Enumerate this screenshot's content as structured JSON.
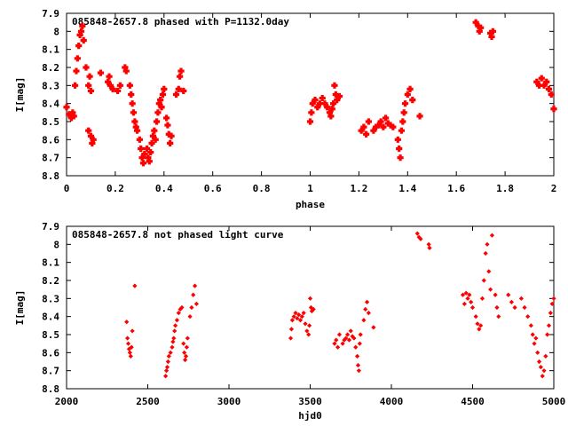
{
  "chart_data": [
    {
      "type": "scatter",
      "title": "085848-2657.8 phased with P=1132.0day",
      "xlabel": "phase",
      "ylabel": "I[mag]",
      "xlim": [
        0,
        2
      ],
      "ylim": [
        7.9,
        8.8
      ],
      "y_inverted": true,
      "x_ticks": [
        "0",
        "0.2",
        "0.4",
        "0.6",
        "0.8",
        "1",
        "1.2",
        "1.4",
        "1.6",
        "1.8",
        "2"
      ],
      "y_ticks": [
        "7.9",
        "8",
        "8.1",
        "8.2",
        "8.3",
        "8.4",
        "8.5",
        "8.6",
        "8.7",
        "8.8"
      ],
      "marker_color": "#ff0000",
      "marker": "filled-cross",
      "series": [
        {
          "points": [
            [
              0.0,
              8.42
            ],
            [
              0.01,
              8.46
            ],
            [
              0.02,
              8.48
            ],
            [
              0.025,
              8.45
            ],
            [
              0.03,
              8.47
            ],
            [
              0.035,
              8.3
            ],
            [
              0.04,
              8.22
            ],
            [
              0.045,
              8.15
            ],
            [
              0.05,
              8.08
            ],
            [
              0.055,
              8.02
            ],
            [
              0.06,
              8.0
            ],
            [
              0.065,
              7.97
            ],
            [
              0.07,
              8.05
            ],
            [
              0.08,
              8.2
            ],
            [
              0.09,
              8.3
            ],
            [
              0.095,
              8.25
            ],
            [
              0.1,
              8.33
            ],
            [
              0.09,
              8.55
            ],
            [
              0.1,
              8.58
            ],
            [
              0.105,
              8.62
            ],
            [
              0.11,
              8.6
            ],
            [
              0.14,
              8.23
            ],
            [
              0.17,
              8.28
            ],
            [
              0.175,
              8.25
            ],
            [
              0.18,
              8.3
            ],
            [
              0.19,
              8.32
            ],
            [
              0.21,
              8.33
            ],
            [
              0.22,
              8.3
            ],
            [
              0.24,
              8.2
            ],
            [
              0.245,
              8.22
            ],
            [
              0.26,
              8.3
            ],
            [
              0.265,
              8.35
            ],
            [
              0.27,
              8.4
            ],
            [
              0.275,
              8.45
            ],
            [
              0.28,
              8.5
            ],
            [
              0.285,
              8.53
            ],
            [
              0.29,
              8.55
            ],
            [
              0.3,
              8.6
            ],
            [
              0.305,
              8.65
            ],
            [
              0.31,
              8.7
            ],
            [
              0.315,
              8.73
            ],
            [
              0.32,
              8.68
            ],
            [
              0.33,
              8.65
            ],
            [
              0.335,
              8.7
            ],
            [
              0.34,
              8.72
            ],
            [
              0.345,
              8.67
            ],
            [
              0.35,
              8.62
            ],
            [
              0.355,
              8.58
            ],
            [
              0.36,
              8.55
            ],
            [
              0.365,
              8.6
            ],
            [
              0.37,
              8.5
            ],
            [
              0.375,
              8.45
            ],
            [
              0.38,
              8.4
            ],
            [
              0.385,
              8.38
            ],
            [
              0.39,
              8.42
            ],
            [
              0.395,
              8.35
            ],
            [
              0.4,
              8.32
            ],
            [
              0.41,
              8.48
            ],
            [
              0.415,
              8.52
            ],
            [
              0.42,
              8.57
            ],
            [
              0.425,
              8.62
            ],
            [
              0.43,
              8.58
            ],
            [
              0.45,
              8.35
            ],
            [
              0.46,
              8.32
            ],
            [
              0.465,
              8.25
            ],
            [
              0.47,
              8.22
            ],
            [
              0.48,
              8.33
            ],
            [
              1.0,
              8.5
            ],
            [
              1.005,
              8.45
            ],
            [
              1.01,
              8.4
            ],
            [
              1.02,
              8.38
            ],
            [
              1.03,
              8.42
            ],
            [
              1.04,
              8.4
            ],
            [
              1.05,
              8.37
            ],
            [
              1.06,
              8.4
            ],
            [
              1.07,
              8.42
            ],
            [
              1.08,
              8.45
            ],
            [
              1.085,
              8.47
            ],
            [
              1.09,
              8.43
            ],
            [
              1.095,
              8.4
            ],
            [
              1.1,
              8.3
            ],
            [
              1.105,
              8.35
            ],
            [
              1.11,
              8.38
            ],
            [
              1.12,
              8.36
            ],
            [
              1.21,
              8.55
            ],
            [
              1.22,
              8.53
            ],
            [
              1.23,
              8.57
            ],
            [
              1.24,
              8.5
            ],
            [
              1.26,
              8.55
            ],
            [
              1.27,
              8.53
            ],
            [
              1.28,
              8.52
            ],
            [
              1.29,
              8.5
            ],
            [
              1.3,
              8.53
            ],
            [
              1.31,
              8.48
            ],
            [
              1.32,
              8.51
            ],
            [
              1.33,
              8.52
            ],
            [
              1.34,
              8.53
            ],
            [
              1.36,
              8.6
            ],
            [
              1.365,
              8.65
            ],
            [
              1.37,
              8.7
            ],
            [
              1.375,
              8.55
            ],
            [
              1.38,
              8.5
            ],
            [
              1.385,
              8.45
            ],
            [
              1.39,
              8.4
            ],
            [
              1.4,
              8.35
            ],
            [
              1.41,
              8.32
            ],
            [
              1.42,
              8.38
            ],
            [
              1.45,
              8.47
            ],
            [
              1.68,
              7.95
            ],
            [
              1.69,
              7.97
            ],
            [
              1.695,
              8.0
            ],
            [
              1.7,
              7.98
            ],
            [
              1.74,
              8.01
            ],
            [
              1.745,
              8.03
            ],
            [
              1.75,
              8.0
            ],
            [
              1.93,
              8.28
            ],
            [
              1.94,
              8.3
            ],
            [
              1.95,
              8.26
            ],
            [
              1.96,
              8.3
            ],
            [
              1.97,
              8.28
            ],
            [
              1.98,
              8.32
            ],
            [
              1.99,
              8.35
            ],
            [
              2.0,
              8.43
            ]
          ]
        }
      ]
    },
    {
      "type": "scatter",
      "title": "085848-2657.8 not phased light curve",
      "xlabel": "hjd0",
      "ylabel": "I[mag]",
      "xlim": [
        2000,
        5000
      ],
      "ylim": [
        7.9,
        8.8
      ],
      "y_inverted": true,
      "x_ticks": [
        "2000",
        "2500",
        "3000",
        "3500",
        "4000",
        "4500",
        "5000"
      ],
      "y_ticks": [
        "7.9",
        "8",
        "8.1",
        "8.2",
        "8.3",
        "8.4",
        "8.5",
        "8.6",
        "8.7",
        "8.8"
      ],
      "marker_color": "#ff0000",
      "marker": "diamond",
      "series": [
        {
          "points": [
            [
              2370,
              8.43
            ],
            [
              2375,
              8.52
            ],
            [
              2380,
              8.55
            ],
            [
              2385,
              8.58
            ],
            [
              2390,
              8.6
            ],
            [
              2395,
              8.62
            ],
            [
              2400,
              8.57
            ],
            [
              2405,
              8.48
            ],
            [
              2420,
              8.23
            ],
            [
              2610,
              8.73
            ],
            [
              2615,
              8.7
            ],
            [
              2620,
              8.68
            ],
            [
              2625,
              8.65
            ],
            [
              2630,
              8.62
            ],
            [
              2640,
              8.6
            ],
            [
              2650,
              8.57
            ],
            [
              2655,
              8.54
            ],
            [
              2660,
              8.52
            ],
            [
              2665,
              8.48
            ],
            [
              2670,
              8.45
            ],
            [
              2680,
              8.42
            ],
            [
              2690,
              8.38
            ],
            [
              2700,
              8.36
            ],
            [
              2710,
              8.35
            ],
            [
              2720,
              8.55
            ],
            [
              2725,
              8.6
            ],
            [
              2730,
              8.64
            ],
            [
              2735,
              8.62
            ],
            [
              2740,
              8.57
            ],
            [
              2745,
              8.52
            ],
            [
              2760,
              8.4
            ],
            [
              2770,
              8.35
            ],
            [
              2780,
              8.28
            ],
            [
              2790,
              8.23
            ],
            [
              2800,
              8.33
            ],
            [
              3380,
              8.52
            ],
            [
              3385,
              8.47
            ],
            [
              3390,
              8.42
            ],
            [
              3400,
              8.4
            ],
            [
              3410,
              8.38
            ],
            [
              3420,
              8.41
            ],
            [
              3430,
              8.39
            ],
            [
              3440,
              8.42
            ],
            [
              3450,
              8.4
            ],
            [
              3460,
              8.38
            ],
            [
              3470,
              8.44
            ],
            [
              3480,
              8.48
            ],
            [
              3490,
              8.5
            ],
            [
              3495,
              8.45
            ],
            [
              3500,
              8.3
            ],
            [
              3505,
              8.35
            ],
            [
              3510,
              8.37
            ],
            [
              3520,
              8.36
            ],
            [
              3650,
              8.55
            ],
            [
              3660,
              8.53
            ],
            [
              3670,
              8.57
            ],
            [
              3680,
              8.5
            ],
            [
              3700,
              8.55
            ],
            [
              3710,
              8.53
            ],
            [
              3720,
              8.52
            ],
            [
              3730,
              8.5
            ],
            [
              3740,
              8.53
            ],
            [
              3750,
              8.48
            ],
            [
              3760,
              8.51
            ],
            [
              3770,
              8.52
            ],
            [
              3780,
              8.57
            ],
            [
              3790,
              8.62
            ],
            [
              3795,
              8.67
            ],
            [
              3800,
              8.7
            ],
            [
              3805,
              8.55
            ],
            [
              3810,
              8.5
            ],
            [
              3830,
              8.42
            ],
            [
              3840,
              8.36
            ],
            [
              3850,
              8.32
            ],
            [
              3860,
              8.38
            ],
            [
              3890,
              8.46
            ],
            [
              4160,
              7.94
            ],
            [
              4170,
              7.96
            ],
            [
              4180,
              7.97
            ],
            [
              4230,
              8.0
            ],
            [
              4235,
              8.02
            ],
            [
              4440,
              8.28
            ],
            [
              4450,
              8.33
            ],
            [
              4460,
              8.27
            ],
            [
              4470,
              8.3
            ],
            [
              4480,
              8.28
            ],
            [
              4490,
              8.32
            ],
            [
              4500,
              8.35
            ],
            [
              4520,
              8.4
            ],
            [
              4530,
              8.44
            ],
            [
              4540,
              8.47
            ],
            [
              4550,
              8.45
            ],
            [
              4560,
              8.3
            ],
            [
              4570,
              8.2
            ],
            [
              4580,
              8.05
            ],
            [
              4590,
              8.0
            ],
            [
              4600,
              8.15
            ],
            [
              4610,
              8.25
            ],
            [
              4620,
              7.95
            ],
            [
              4640,
              8.28
            ],
            [
              4650,
              8.35
            ],
            [
              4660,
              8.4
            ],
            [
              4720,
              8.28
            ],
            [
              4740,
              8.32
            ],
            [
              4760,
              8.35
            ],
            [
              4800,
              8.3
            ],
            [
              4820,
              8.35
            ],
            [
              4840,
              8.4
            ],
            [
              4860,
              8.45
            ],
            [
              4870,
              8.5
            ],
            [
              4880,
              8.55
            ],
            [
              4890,
              8.52
            ],
            [
              4900,
              8.6
            ],
            [
              4910,
              8.65
            ],
            [
              4920,
              8.68
            ],
            [
              4930,
              8.73
            ],
            [
              4940,
              8.7
            ],
            [
              4950,
              8.62
            ],
            [
              4960,
              8.5
            ],
            [
              4970,
              8.45
            ],
            [
              4980,
              8.38
            ],
            [
              4990,
              8.33
            ],
            [
              5000,
              8.3
            ]
          ]
        }
      ]
    }
  ]
}
